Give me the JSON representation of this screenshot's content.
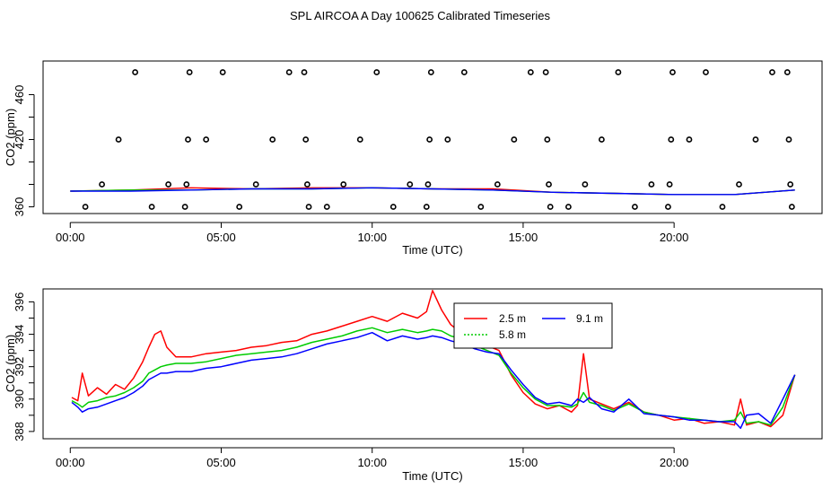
{
  "chart_data": [
    {
      "type": "scatter",
      "title": "SPL AIRCOA A  Day 100625  Calibrated Timeseries",
      "xlabel": "Time (UTC)",
      "ylabel": "CO2 (ppm)",
      "xlim": [
        -0.9,
        24.9
      ],
      "ylim": [
        354,
        490
      ],
      "x_ticks": [
        0,
        5,
        10,
        15,
        20
      ],
      "x_tick_labels": [
        "00:00",
        "05:00",
        "10:00",
        "15:00",
        "20:00"
      ],
      "y_ticks": [
        360,
        380,
        400,
        420,
        440,
        460
      ],
      "y_tick_labels": [
        "360",
        "",
        "",
        "420",
        "",
        "460"
      ],
      "points": [
        [
          0.5,
          360
        ],
        [
          1.05,
          380
        ],
        [
          1.6,
          420
        ],
        [
          2.15,
          480
        ],
        [
          2.7,
          360
        ],
        [
          3.25,
          380
        ],
        [
          3.8,
          360
        ],
        [
          3.85,
          380
        ],
        [
          3.9,
          420
        ],
        [
          3.95,
          480
        ],
        [
          4.5,
          420
        ],
        [
          5.05,
          480
        ],
        [
          5.6,
          360
        ],
        [
          6.15,
          380
        ],
        [
          6.7,
          420
        ],
        [
          7.25,
          480
        ],
        [
          7.75,
          480
        ],
        [
          7.8,
          420
        ],
        [
          7.85,
          380
        ],
        [
          7.9,
          360
        ],
        [
          8.5,
          360
        ],
        [
          9.05,
          380
        ],
        [
          9.6,
          420
        ],
        [
          10.15,
          480
        ],
        [
          10.7,
          360
        ],
        [
          11.25,
          380
        ],
        [
          11.8,
          360
        ],
        [
          11.85,
          380
        ],
        [
          11.9,
          420
        ],
        [
          11.95,
          480
        ],
        [
          12.5,
          420
        ],
        [
          13.05,
          480
        ],
        [
          13.6,
          360
        ],
        [
          14.15,
          380
        ],
        [
          14.7,
          420
        ],
        [
          15.25,
          480
        ],
        [
          15.75,
          480
        ],
        [
          15.8,
          420
        ],
        [
          15.85,
          380
        ],
        [
          15.9,
          360
        ],
        [
          16.5,
          360
        ],
        [
          17.05,
          380
        ],
        [
          17.6,
          420
        ],
        [
          18.15,
          480
        ],
        [
          18.7,
          360
        ],
        [
          19.25,
          380
        ],
        [
          19.8,
          360
        ],
        [
          19.85,
          380
        ],
        [
          19.9,
          420
        ],
        [
          19.95,
          480
        ],
        [
          20.5,
          420
        ],
        [
          21.05,
          480
        ],
        [
          21.6,
          360
        ],
        [
          22.15,
          380
        ],
        [
          22.7,
          420
        ],
        [
          23.25,
          480
        ],
        [
          23.75,
          480
        ],
        [
          23.8,
          420
        ],
        [
          23.85,
          380
        ],
        [
          23.9,
          360
        ]
      ],
      "series": [
        {
          "name": "2.5 m",
          "color": "#ff0000",
          "x": [
            0,
            2,
            4,
            6,
            8,
            10,
            12,
            14,
            16,
            18,
            20,
            22,
            24
          ],
          "values": [
            374,
            375,
            377,
            376,
            377,
            377,
            376,
            376,
            373,
            372,
            371,
            371,
            375
          ]
        },
        {
          "name": "5.8 m",
          "color": "#00cc00",
          "x": [
            0,
            2,
            4,
            6,
            8,
            10,
            12,
            14,
            16,
            18,
            20,
            22,
            24
          ],
          "values": [
            374,
            375,
            375,
            376,
            376,
            377,
            376,
            375,
            373,
            372,
            371,
            371,
            375
          ]
        },
        {
          "name": "9.1 m",
          "color": "#0000ff",
          "x": [
            0,
            2,
            4,
            6,
            8,
            10,
            12,
            14,
            16,
            18,
            20,
            22,
            24
          ],
          "values": [
            374,
            374,
            375,
            376,
            376,
            377,
            376,
            375,
            373,
            372,
            371,
            371,
            375
          ]
        }
      ]
    },
    {
      "type": "line",
      "xlabel": "Time (UTC)",
      "ylabel": "CO2 (ppm)",
      "xlim": [
        -0.9,
        24.9
      ],
      "ylim": [
        387.55,
        396.8
      ],
      "x_ticks": [
        0,
        5,
        10,
        15,
        20
      ],
      "x_tick_labels": [
        "00:00",
        "05:00",
        "10:00",
        "15:00",
        "20:00"
      ],
      "y_ticks": [
        388,
        389,
        390,
        391,
        392,
        393,
        394,
        395,
        396
      ],
      "y_tick_labels": [
        "388",
        "",
        "390",
        "",
        "392",
        "",
        "394",
        "",
        "396"
      ],
      "legend_position": "top-right",
      "series": [
        {
          "name": "2.5 m",
          "color": "#ff0000",
          "x": [
            0.05,
            0.25,
            0.4,
            0.6,
            0.9,
            1.2,
            1.5,
            1.8,
            2.1,
            2.4,
            2.6,
            2.8,
            3.0,
            3.2,
            3.5,
            4.0,
            4.5,
            5.0,
            5.5,
            6.0,
            6.5,
            7.0,
            7.5,
            8.0,
            8.5,
            9.0,
            9.5,
            10.0,
            10.5,
            11.0,
            11.5,
            11.8,
            12.0,
            12.3,
            12.6,
            13.0,
            13.4,
            13.8,
            14.2,
            14.6,
            15.0,
            15.4,
            15.8,
            16.2,
            16.6,
            16.8,
            17.0,
            17.2,
            17.6,
            18.0,
            18.5,
            19.0,
            19.5,
            20.0,
            20.5,
            21.0,
            21.5,
            22.0,
            22.2,
            22.4,
            22.8,
            23.2,
            23.6,
            24.0
          ],
          "values": [
            390.1,
            389.9,
            391.6,
            390.2,
            390.7,
            390.3,
            390.9,
            390.6,
            391.3,
            392.3,
            393.2,
            394.0,
            394.2,
            393.2,
            392.6,
            392.6,
            392.8,
            392.9,
            393.0,
            393.2,
            393.3,
            393.5,
            393.6,
            394.0,
            394.2,
            394.5,
            394.8,
            395.1,
            394.8,
            395.3,
            395.0,
            395.4,
            396.7,
            395.5,
            394.6,
            394.0,
            393.7,
            393.3,
            393.0,
            391.5,
            390.4,
            389.7,
            389.4,
            389.6,
            389.2,
            389.6,
            392.8,
            390.0,
            389.7,
            389.4,
            389.8,
            389.2,
            389.0,
            388.7,
            388.8,
            388.5,
            388.6,
            388.4,
            390.0,
            388.4,
            388.6,
            388.3,
            389.0,
            391.5
          ]
        },
        {
          "name": "5.8 m",
          "color": "#00cc00",
          "x": [
            0.05,
            0.25,
            0.4,
            0.6,
            0.9,
            1.2,
            1.5,
            1.8,
            2.1,
            2.4,
            2.6,
            2.8,
            3.0,
            3.2,
            3.5,
            4.0,
            4.5,
            5.0,
            5.5,
            6.0,
            6.5,
            7.0,
            7.5,
            8.0,
            8.5,
            9.0,
            9.5,
            10.0,
            10.5,
            11.0,
            11.5,
            11.8,
            12.0,
            12.3,
            12.6,
            13.0,
            13.4,
            13.8,
            14.2,
            14.6,
            15.0,
            15.4,
            15.8,
            16.2,
            16.6,
            16.8,
            17.0,
            17.2,
            17.6,
            18.0,
            18.5,
            19.0,
            19.5,
            20.0,
            20.5,
            21.0,
            21.5,
            22.0,
            22.2,
            22.4,
            22.8,
            23.2,
            23.6,
            24.0
          ],
          "values": [
            389.9,
            389.7,
            389.5,
            389.8,
            389.9,
            390.1,
            390.2,
            390.4,
            390.7,
            391.1,
            391.6,
            391.8,
            392.0,
            392.1,
            392.2,
            392.2,
            392.3,
            392.5,
            392.7,
            392.8,
            392.9,
            393.0,
            393.2,
            393.5,
            393.7,
            393.9,
            394.2,
            394.4,
            394.1,
            394.3,
            394.1,
            394.2,
            394.3,
            394.2,
            393.9,
            393.7,
            393.3,
            393.0,
            392.7,
            391.6,
            390.7,
            390.0,
            389.6,
            389.6,
            389.5,
            389.7,
            390.4,
            389.8,
            389.6,
            389.3,
            389.7,
            389.2,
            389.0,
            388.9,
            388.8,
            388.7,
            388.6,
            388.7,
            389.2,
            388.5,
            388.6,
            388.4,
            389.5,
            391.5
          ]
        },
        {
          "name": "9.1 m",
          "color": "#0000ff",
          "x": [
            0.05,
            0.25,
            0.4,
            0.6,
            0.9,
            1.2,
            1.5,
            1.8,
            2.1,
            2.4,
            2.6,
            2.8,
            3.0,
            3.2,
            3.5,
            4.0,
            4.5,
            5.0,
            5.5,
            6.0,
            6.5,
            7.0,
            7.5,
            8.0,
            8.5,
            9.0,
            9.5,
            10.0,
            10.5,
            11.0,
            11.5,
            11.8,
            12.0,
            12.3,
            12.6,
            13.0,
            13.4,
            13.8,
            14.2,
            14.6,
            15.0,
            15.4,
            15.8,
            16.2,
            16.6,
            16.8,
            17.0,
            17.2,
            17.6,
            18.0,
            18.5,
            19.0,
            19.5,
            20.0,
            20.5,
            21.0,
            21.5,
            22.0,
            22.2,
            22.4,
            22.8,
            23.2,
            23.6,
            24.0
          ],
          "values": [
            389.8,
            389.5,
            389.2,
            389.4,
            389.5,
            389.7,
            389.9,
            390.1,
            390.4,
            390.8,
            391.2,
            391.4,
            391.6,
            391.6,
            391.7,
            391.7,
            391.9,
            392.0,
            392.2,
            392.4,
            392.5,
            392.6,
            392.8,
            393.1,
            393.4,
            393.6,
            393.8,
            394.1,
            393.6,
            393.9,
            393.7,
            393.8,
            393.9,
            393.8,
            393.6,
            393.4,
            393.1,
            392.9,
            392.8,
            391.8,
            390.9,
            390.1,
            389.7,
            389.8,
            389.6,
            390.0,
            389.8,
            390.1,
            389.4,
            389.2,
            390.0,
            389.1,
            389.0,
            388.9,
            388.7,
            388.7,
            388.6,
            388.6,
            388.2,
            389.0,
            389.1,
            388.5,
            390.0,
            391.5
          ]
        }
      ]
    }
  ]
}
